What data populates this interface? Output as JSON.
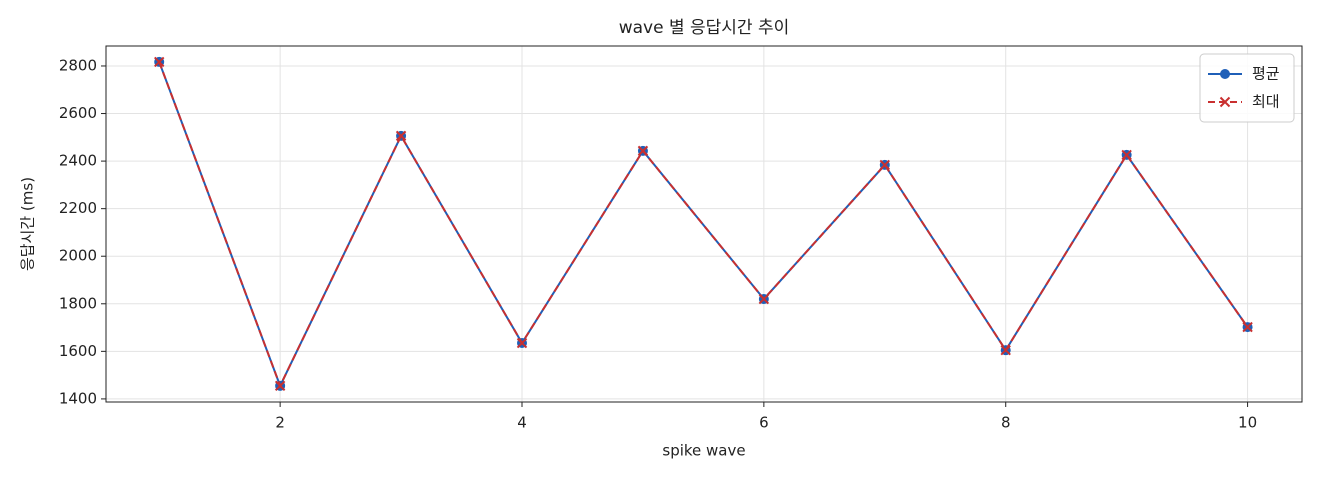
{
  "chart_data": {
    "type": "line",
    "title": "wave 별 응답시간 추이",
    "xlabel": "spike wave",
    "ylabel": "응답시간 (ms)",
    "x": [
      1,
      2,
      3,
      4,
      5,
      6,
      7,
      8,
      9,
      10
    ],
    "series": [
      {
        "name": "평균",
        "color": "#1f5fb8",
        "marker": "o",
        "linestyle": "solid",
        "values": [
          2817,
          1455,
          2506,
          1635,
          2443,
          1820,
          2384,
          1605,
          2426,
          1702
        ]
      },
      {
        "name": "최대",
        "color": "#c93030",
        "marker": "x",
        "linestyle": "dashed",
        "values": [
          2817,
          1455,
          2506,
          1635,
          2443,
          1820,
          2384,
          1605,
          2426,
          1702
        ]
      }
    ],
    "xlim": [
      0.56,
      10.45
    ],
    "xticks": [
      2,
      4,
      6,
      8,
      10
    ],
    "ylim": [
      1387,
      2884
    ],
    "yticks": [
      1400,
      1600,
      1800,
      2000,
      2200,
      2400,
      2600,
      2800
    ],
    "grid": true,
    "legend": "upper right"
  }
}
